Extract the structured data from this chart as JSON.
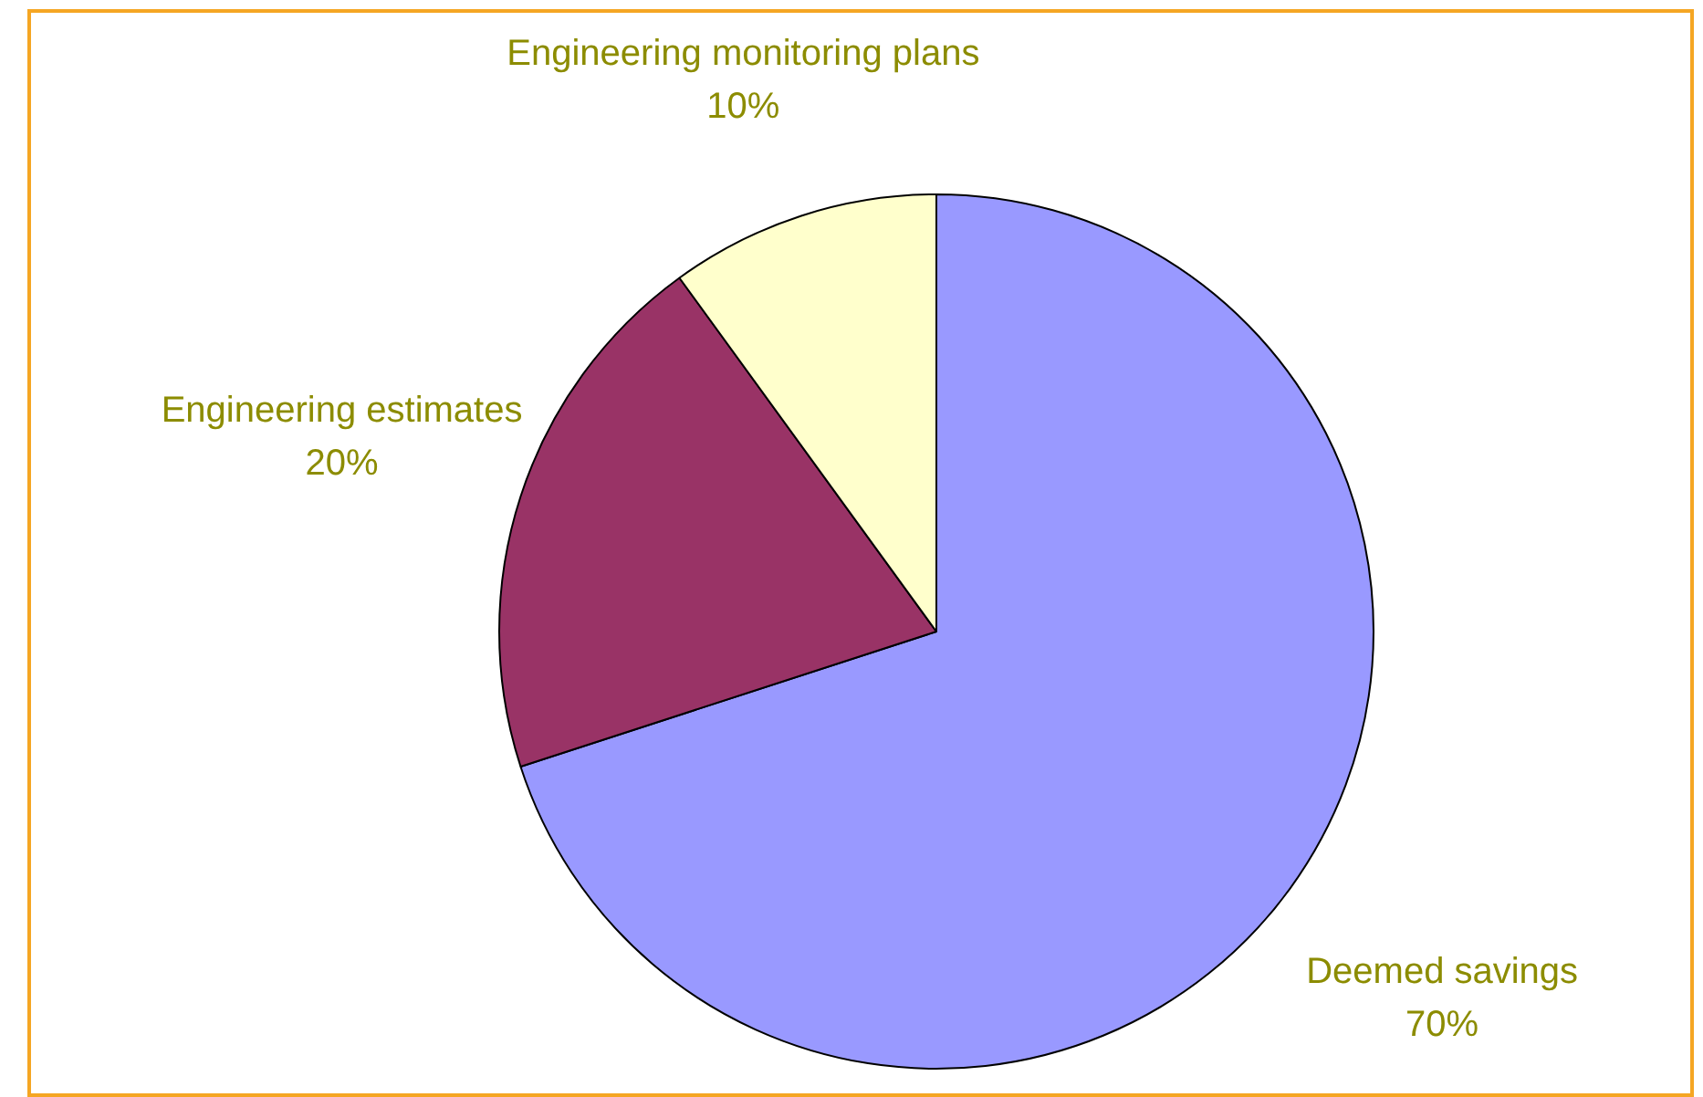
{
  "chart_data": {
    "type": "pie",
    "categories": [
      "Deemed savings",
      "Engineering estimates",
      "Engineering monitoring plans"
    ],
    "values": [
      70,
      20,
      10
    ],
    "colors": [
      "#9999ff",
      "#993366",
      "#ffffcc"
    ],
    "value_labels": [
      "70%",
      "20%",
      "10%"
    ],
    "legend": false
  }
}
